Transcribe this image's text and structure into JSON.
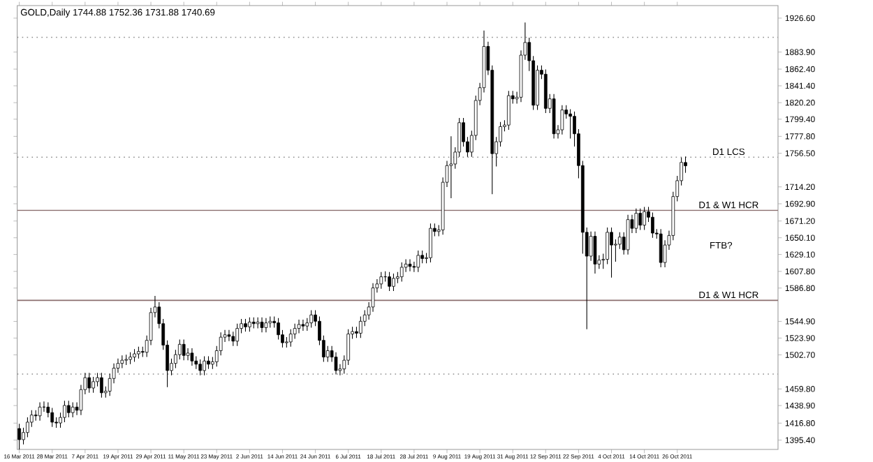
{
  "chart_data": {
    "type": "candlestick",
    "title": "GOLD,Daily 1744.88 1752.36 1731.88 1740.69",
    "categories": [
      "16 Mar 2011",
      null,
      null,
      null,
      null,
      null,
      null,
      null,
      "28 Mar 2011",
      null,
      null,
      null,
      null,
      null,
      null,
      null,
      "7 Apr 2011",
      null,
      null,
      null,
      null,
      null,
      null,
      null,
      "19 Apr 2011",
      null,
      null,
      null,
      null,
      null,
      null,
      null,
      "29 Apr 2011",
      null,
      null,
      null,
      null,
      null,
      null,
      null,
      "11 May 2011",
      null,
      null,
      null,
      null,
      null,
      null,
      null,
      "23 May 2011",
      null,
      null,
      null,
      null,
      null,
      null,
      null,
      "2 Jun 2011",
      null,
      null,
      null,
      null,
      null,
      null,
      null,
      "14 Jun 2011",
      null,
      null,
      null,
      null,
      null,
      null,
      null,
      "24 Jun 2011",
      null,
      null,
      null,
      null,
      null,
      null,
      null,
      "6 Jul 2011",
      null,
      null,
      null,
      null,
      null,
      null,
      null,
      "18 Jul 2011",
      null,
      null,
      null,
      null,
      null,
      null,
      null,
      "28 Jul 2011",
      null,
      null,
      null,
      null,
      null,
      null,
      null,
      "9 Aug 2011",
      null,
      null,
      null,
      null,
      null,
      null,
      null,
      "19 Aug 2011",
      null,
      null,
      null,
      null,
      null,
      null,
      null,
      "31 Aug 2011",
      null,
      null,
      null,
      null,
      null,
      null,
      null,
      "12 Sep 2011",
      null,
      null,
      null,
      null,
      null,
      null,
      null,
      "22 Sep 2011",
      null,
      null,
      null,
      null,
      null,
      null,
      null,
      "4 Oct 2011",
      null,
      null,
      null,
      null,
      null,
      null,
      null,
      "14 Oct 2011",
      null,
      null,
      null,
      null,
      null,
      null,
      null,
      "26 Oct 2011",
      null,
      null,
      null,
      null,
      null,
      null,
      null,
      null,
      null,
      null,
      null,
      null,
      null,
      null,
      null,
      null,
      null,
      null,
      null,
      null,
      null,
      null,
      null,
      null
    ],
    "ohlc": [
      [
        1410,
        1416,
        1380,
        1396
      ],
      [
        1396,
        1411,
        1390,
        1405
      ],
      [
        1405,
        1424,
        1399,
        1418
      ],
      [
        1418,
        1433,
        1412,
        1427
      ],
      [
        1427,
        1433,
        1420,
        1426
      ],
      [
        1426,
        1443,
        1420,
        1437
      ],
      [
        1437,
        1444,
        1431,
        1437
      ],
      [
        1437,
        1443,
        1424,
        1430
      ],
      [
        1430,
        1436,
        1412,
        1418
      ],
      [
        1418,
        1424,
        1411,
        1417
      ],
      [
        1417,
        1430,
        1411,
        1424
      ],
      [
        1424,
        1445,
        1418,
        1439
      ],
      [
        1439,
        1445,
        1424,
        1430
      ],
      [
        1430,
        1443,
        1424,
        1437
      ],
      [
        1437,
        1443,
        1427,
        1433
      ],
      [
        1433,
        1465,
        1427,
        1459
      ],
      [
        1459,
        1480,
        1453,
        1474
      ],
      [
        1474,
        1480,
        1455,
        1461
      ],
      [
        1461,
        1475,
        1455,
        1469
      ],
      [
        1469,
        1480,
        1463,
        1474
      ],
      [
        1474,
        1480,
        1449,
        1455
      ],
      [
        1455,
        1463,
        1449,
        1457
      ],
      [
        1457,
        1479,
        1451,
        1473
      ],
      [
        1473,
        1492,
        1467,
        1486
      ],
      [
        1486,
        1498,
        1480,
        1492
      ],
      [
        1492,
        1502,
        1486,
        1496
      ],
      [
        1496,
        1503,
        1490,
        1497
      ],
      [
        1497,
        1506,
        1491,
        1500
      ],
      [
        1500,
        1510,
        1494,
        1504
      ],
      [
        1504,
        1513,
        1498,
        1507
      ],
      [
        1507,
        1513,
        1500,
        1506
      ],
      [
        1506,
        1527,
        1500,
        1521
      ],
      [
        1521,
        1562,
        1515,
        1556
      ],
      [
        1556,
        1577,
        1550,
        1563
      ],
      [
        1563,
        1569,
        1536,
        1542
      ],
      [
        1542,
        1548,
        1509,
        1515
      ],
      [
        1515,
        1521,
        1462,
        1483
      ],
      [
        1483,
        1498,
        1477,
        1492
      ],
      [
        1492,
        1509,
        1486,
        1503
      ],
      [
        1503,
        1522,
        1497,
        1516
      ],
      [
        1516,
        1522,
        1496,
        1502
      ],
      [
        1502,
        1511,
        1496,
        1505
      ],
      [
        1505,
        1511,
        1489,
        1495
      ],
      [
        1495,
        1501,
        1485,
        1491
      ],
      [
        1491,
        1497,
        1477,
        1483
      ],
      [
        1483,
        1501,
        1477,
        1495
      ],
      [
        1495,
        1501,
        1485,
        1491
      ],
      [
        1491,
        1500,
        1485,
        1494
      ],
      [
        1494,
        1514,
        1488,
        1508
      ],
      [
        1508,
        1531,
        1502,
        1525
      ],
      [
        1525,
        1534,
        1519,
        1528
      ],
      [
        1528,
        1534,
        1520,
        1526
      ],
      [
        1526,
        1532,
        1514,
        1520
      ],
      [
        1520,
        1542,
        1514,
        1536
      ],
      [
        1536,
        1548,
        1530,
        1542
      ],
      [
        1542,
        1548,
        1532,
        1538
      ],
      [
        1538,
        1550,
        1532,
        1544
      ],
      [
        1544,
        1550,
        1536,
        1542
      ],
      [
        1542,
        1550,
        1536,
        1544
      ],
      [
        1544,
        1550,
        1531,
        1537
      ],
      [
        1537,
        1549,
        1531,
        1543
      ],
      [
        1543,
        1551,
        1537,
        1545
      ],
      [
        1545,
        1551,
        1537,
        1543
      ],
      [
        1543,
        1549,
        1522,
        1528
      ],
      [
        1528,
        1534,
        1512,
        1518
      ],
      [
        1518,
        1525,
        1512,
        1519
      ],
      [
        1519,
        1535,
        1513,
        1529
      ],
      [
        1529,
        1542,
        1523,
        1536
      ],
      [
        1536,
        1547,
        1530,
        1541
      ],
      [
        1541,
        1547,
        1533,
        1539
      ],
      [
        1539,
        1549,
        1533,
        1543
      ],
      [
        1543,
        1559,
        1537,
        1553
      ],
      [
        1553,
        1559,
        1539,
        1545
      ],
      [
        1545,
        1551,
        1515,
        1521
      ],
      [
        1521,
        1527,
        1494,
        1500
      ],
      [
        1500,
        1514,
        1494,
        1508
      ],
      [
        1508,
        1514,
        1494,
        1500
      ],
      [
        1500,
        1506,
        1478,
        1483
      ],
      [
        1483,
        1491,
        1477,
        1485
      ],
      [
        1485,
        1502,
        1479,
        1496
      ],
      [
        1496,
        1535,
        1490,
        1529
      ],
      [
        1529,
        1538,
        1523,
        1532
      ],
      [
        1532,
        1538,
        1524,
        1530
      ],
      [
        1530,
        1551,
        1524,
        1545
      ],
      [
        1545,
        1559,
        1539,
        1553
      ],
      [
        1553,
        1569,
        1547,
        1563
      ],
      [
        1563,
        1593,
        1557,
        1587
      ],
      [
        1587,
        1598,
        1581,
        1592
      ],
      [
        1592,
        1607,
        1586,
        1601
      ],
      [
        1601,
        1608,
        1595,
        1601
      ],
      [
        1601,
        1607,
        1583,
        1589
      ],
      [
        1589,
        1605,
        1583,
        1599
      ],
      [
        1599,
        1607,
        1593,
        1601
      ],
      [
        1601,
        1619,
        1595,
        1613
      ],
      [
        1613,
        1623,
        1607,
        1617
      ],
      [
        1617,
        1623,
        1608,
        1614
      ],
      [
        1614,
        1620,
        1607,
        1613
      ],
      [
        1613,
        1634,
        1607,
        1628
      ],
      [
        1628,
        1634,
        1618,
        1624
      ],
      [
        1624,
        1631,
        1618,
        1625
      ],
      [
        1625,
        1668,
        1619,
        1662
      ],
      [
        1662,
        1668,
        1652,
        1658
      ],
      [
        1658,
        1666,
        1652,
        1660
      ],
      [
        1660,
        1726,
        1654,
        1720
      ],
      [
        1720,
        1747,
        1714,
        1741
      ],
      [
        1741,
        1778,
        1700,
        1743
      ],
      [
        1743,
        1764,
        1737,
        1758
      ],
      [
        1758,
        1801,
        1752,
        1795
      ],
      [
        1795,
        1801,
        1765,
        1771
      ],
      [
        1771,
        1777,
        1752,
        1758
      ],
      [
        1758,
        1785,
        1752,
        1779
      ],
      [
        1779,
        1829,
        1773,
        1823
      ],
      [
        1823,
        1845,
        1817,
        1839
      ],
      [
        1839,
        1911,
        1833,
        1891
      ],
      [
        1891,
        1897,
        1855,
        1861
      ],
      [
        1861,
        1867,
        1705,
        1756
      ],
      [
        1756,
        1777,
        1740,
        1771
      ],
      [
        1771,
        1796,
        1765,
        1790
      ],
      [
        1790,
        1798,
        1784,
        1792
      ],
      [
        1792,
        1835,
        1786,
        1829
      ],
      [
        1829,
        1835,
        1819,
        1825
      ],
      [
        1825,
        1834,
        1819,
        1827
      ],
      [
        1827,
        1886,
        1821,
        1880
      ],
      [
        1880,
        1921,
        1874,
        1896
      ],
      [
        1896,
        1902,
        1860,
        1873
      ],
      [
        1873,
        1879,
        1811,
        1817
      ],
      [
        1817,
        1867,
        1811,
        1861
      ],
      [
        1861,
        1867,
        1850,
        1856
      ],
      [
        1856,
        1862,
        1807,
        1813
      ],
      [
        1813,
        1831,
        1807,
        1825
      ],
      [
        1825,
        1831,
        1775,
        1781
      ],
      [
        1781,
        1792,
        1775,
        1786
      ],
      [
        1786,
        1817,
        1780,
        1811
      ],
      [
        1811,
        1817,
        1800,
        1806
      ],
      [
        1806,
        1812,
        1775,
        1803
      ],
      [
        1803,
        1809,
        1765,
        1781
      ],
      [
        1781,
        1787,
        1725,
        1741
      ],
      [
        1741,
        1747,
        1630,
        1657
      ],
      [
        1657,
        1663,
        1535,
        1627
      ],
      [
        1627,
        1658,
        1621,
        1652
      ],
      [
        1652,
        1658,
        1605,
        1617
      ],
      [
        1617,
        1628,
        1611,
        1622
      ],
      [
        1622,
        1630,
        1611,
        1623
      ],
      [
        1623,
        1663,
        1617,
        1657
      ],
      [
        1657,
        1663,
        1600,
        1641
      ],
      [
        1641,
        1648,
        1620,
        1642
      ],
      [
        1642,
        1657,
        1636,
        1651
      ],
      [
        1651,
        1657,
        1629,
        1635
      ],
      [
        1635,
        1679,
        1629,
        1673
      ],
      [
        1673,
        1679,
        1656,
        1662
      ],
      [
        1662,
        1687,
        1656,
        1681
      ],
      [
        1681,
        1687,
        1660,
        1666
      ],
      [
        1666,
        1689,
        1660,
        1683
      ],
      [
        1683,
        1689,
        1670,
        1676
      ],
      [
        1676,
        1682,
        1650,
        1656
      ],
      [
        1656,
        1661,
        1649,
        1655
      ],
      [
        1655,
        1661,
        1613,
        1619
      ],
      [
        1619,
        1647,
        1613,
        1641
      ],
      [
        1641,
        1659,
        1635,
        1653
      ],
      [
        1653,
        1708,
        1647,
        1702
      ],
      [
        1702,
        1728,
        1696,
        1722
      ],
      [
        1722,
        1751,
        1716,
        1745
      ],
      [
        1744.88,
        1752.36,
        1731.88,
        1740.69
      ],
      null,
      null,
      null,
      null,
      null,
      null,
      null,
      null,
      null,
      null,
      null,
      null,
      null,
      null,
      null,
      null,
      null,
      null,
      null,
      null,
      null,
      null
    ],
    "ylim": [
      1383.7,
      1942.4
    ],
    "yticks": [
      {
        "value": 1926.6,
        "label": "1926.60"
      },
      {
        "value": 1883.9,
        "label": "1883.90"
      },
      {
        "value": 1862.4,
        "label": "1862.40"
      },
      {
        "value": 1841.4,
        "label": "1841.40"
      },
      {
        "value": 1820.2,
        "label": "1820.20"
      },
      {
        "value": 1799.4,
        "label": "1799.40"
      },
      {
        "value": 1777.8,
        "label": "1777.80"
      },
      {
        "value": 1756.5,
        "label": "1756.50"
      },
      {
        "value": 1714.2,
        "label": "1714.20"
      },
      {
        "value": 1692.9,
        "label": "1692.90"
      },
      {
        "value": 1671.2,
        "label": "1671.20"
      },
      {
        "value": 1650.1,
        "label": "1650.10"
      },
      {
        "value": 1629.1,
        "label": "1629.10"
      },
      {
        "value": 1607.8,
        "label": "1607.80"
      },
      {
        "value": 1586.8,
        "label": "1586.80"
      },
      {
        "value": 1544.9,
        "label": "1544.90"
      },
      {
        "value": 1523.9,
        "label": "1523.90"
      },
      {
        "value": 1502.7,
        "label": "1502.70"
      },
      {
        "value": 1459.8,
        "label": "1459.80"
      },
      {
        "value": 1438.9,
        "label": "1438.90"
      },
      {
        "value": 1416.8,
        "label": "1416.80"
      },
      {
        "value": 1395.4,
        "label": "1395.40"
      }
    ],
    "ref_lines": [
      {
        "axis": "y",
        "value": 1902.4,
        "color": "#8c8c8c",
        "line_style": "dotted"
      },
      {
        "axis": "y",
        "value": 1751.5,
        "label": "D1 LCS",
        "color": "#8c8c8c",
        "line_style": "dotted"
      },
      {
        "axis": "y",
        "value": 1684.5,
        "label": "D1 & W1 HCR",
        "color": "#8b6f6f",
        "line_style": "solid"
      },
      {
        "axis": "y",
        "value": 1571.3,
        "label": "D1 & W1 HCR",
        "color": "#8b6f6f",
        "line_style": "solid"
      },
      {
        "axis": "y",
        "value": 1478.6,
        "color": "#8c8c8c",
        "line_style": "dotted"
      }
    ],
    "annotations": [
      "FTB?"
    ]
  }
}
